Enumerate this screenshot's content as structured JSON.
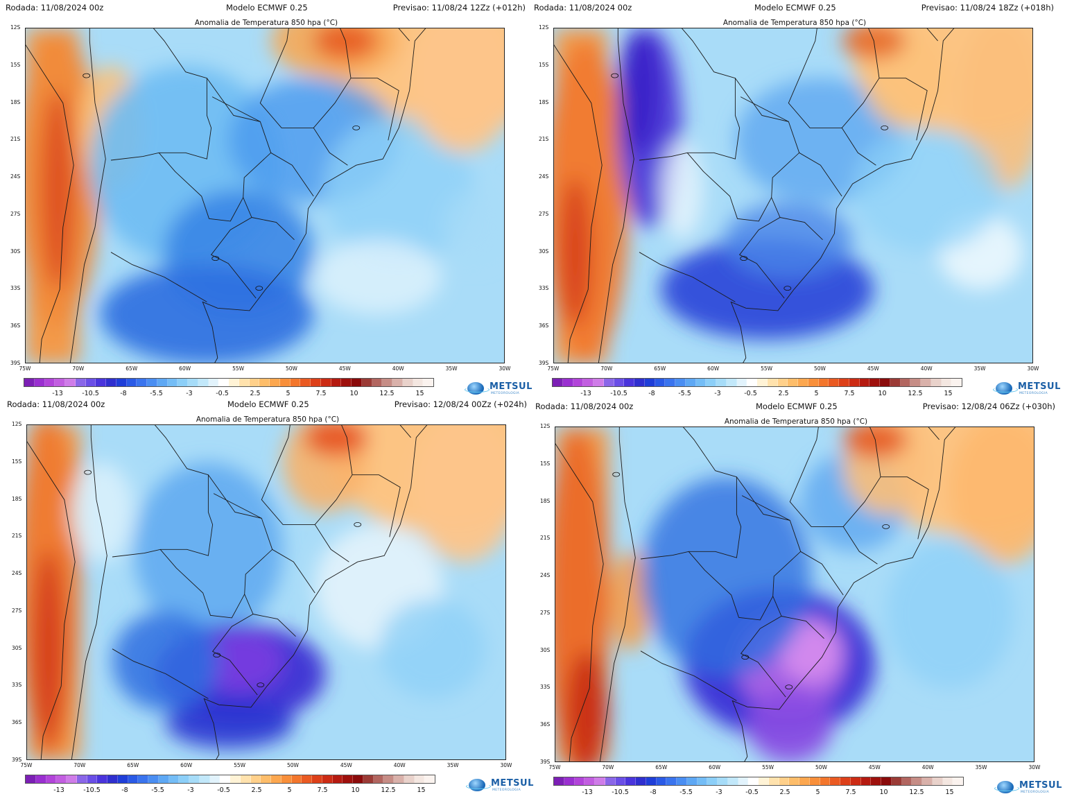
{
  "title": "Anomalia de Temperatura 850 hpa (°C)",
  "brand": {
    "name": "METSUL",
    "tagline": "METEOROLOGIA"
  },
  "lat_labels": [
    "12S",
    "15S",
    "18S",
    "21S",
    "24S",
    "27S",
    "30S",
    "33S",
    "36S",
    "39S"
  ],
  "lon_labels": [
    "75W",
    "70W",
    "65W",
    "60W",
    "55W",
    "50W",
    "45W",
    "40W",
    "35W",
    "30W"
  ],
  "colorbar": {
    "labels": [
      "-13",
      "-10.5",
      "-8",
      "-5.5",
      "-3",
      "-0.5",
      "2.5",
      "5",
      "7.5",
      "10",
      "12.5",
      "15"
    ],
    "colors": [
      "#7c1fb5",
      "#9a2fd0",
      "#b244d9",
      "#c25ee0",
      "#cf7ce8",
      "#8a66e8",
      "#6a4ee6",
      "#4a34dc",
      "#2f2fcf",
      "#1f3ed8",
      "#2a5ae6",
      "#3a74ee",
      "#4a8ef2",
      "#5ea8f4",
      "#74bdf6",
      "#8ccff8",
      "#a6dcf8",
      "#c2e8fa",
      "#e2f3fc",
      "#ffffff",
      "#fff3d6",
      "#ffe2ad",
      "#ffd08a",
      "#fdbd6a",
      "#fca74f",
      "#f88f3a",
      "#f3762c",
      "#ea5a22",
      "#dd4019",
      "#cc2b14",
      "#b51a10",
      "#9e100c",
      "#8a0b0b",
      "#9b3b36",
      "#b26660",
      "#c68d86",
      "#d9b1aa",
      "#e9d2cb",
      "#f4e7e1",
      "#fbf3ef"
    ]
  },
  "panels": [
    {
      "run": "Rodada: 11/08/2024 00z",
      "model": "Modelo ECMWF 0.25",
      "forecast": "Previsao: 11/08/24 12Zz (+012h)"
    },
    {
      "run": "Rodada: 11/08/2024 00z",
      "model": "Modelo ECMWF 0.25",
      "forecast": "Previsao: 11/08/24 18Zz (+018h)"
    },
    {
      "run": "Rodada: 11/08/2024 00z",
      "model": "Modelo ECMWF 0.25",
      "forecast": "Previsao: 12/08/24 00Zz (+024h)"
    },
    {
      "run": "Rodada: 11/08/2024 00z",
      "model": "Modelo ECMWF 0.25",
      "forecast": "Previsao: 12/08/24 06Zz (+030h)"
    }
  ]
}
